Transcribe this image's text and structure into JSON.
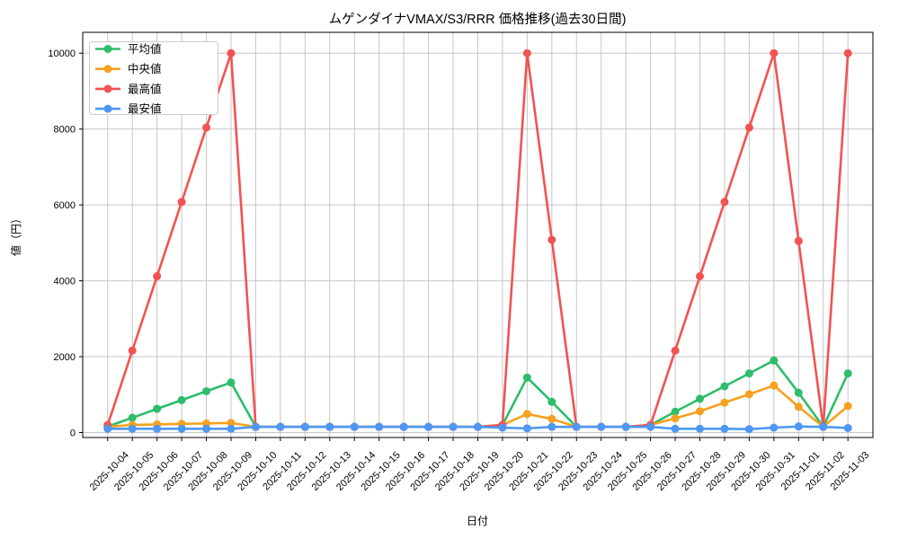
{
  "chart_data": {
    "type": "line",
    "title": "ムゲンダイナVMAX/S3/RRR 価格推移(過去30日間)",
    "xlabel": "日付",
    "ylabel": "値（円）",
    "x": [
      "2025-10-04",
      "2025-10-05",
      "2025-10-06",
      "2025-10-07",
      "2025-10-08",
      "2025-10-09",
      "2025-10-10",
      "2025-10-11",
      "2025-10-12",
      "2025-10-13",
      "2025-10-14",
      "2025-10-15",
      "2025-10-16",
      "2025-10-17",
      "2025-10-18",
      "2025-10-19",
      "2025-10-20",
      "2025-10-21",
      "2025-10-22",
      "2025-10-23",
      "2025-10-24",
      "2025-10-25",
      "2025-10-26",
      "2025-10-27",
      "2025-10-28",
      "2025-10-29",
      "2025-10-30",
      "2025-10-31",
      "2025-11-01",
      "2025-11-02",
      "2025-11-03"
    ],
    "series": [
      {
        "name": "平均値",
        "color": "#2ebd6b",
        "values": [
          160,
          390,
          625,
          855,
          1090,
          1320,
          150,
          150,
          150,
          150,
          150,
          150,
          150,
          150,
          150,
          150,
          200,
          1450,
          810,
          150,
          150,
          150,
          200,
          550,
          890,
          1220,
          1560,
          1900,
          1050,
          150,
          1560
        ]
      },
      {
        "name": "中央値",
        "color": "#f6a11f",
        "values": [
          155,
          200,
          215,
          230,
          240,
          255,
          150,
          150,
          150,
          150,
          150,
          150,
          150,
          150,
          150,
          150,
          200,
          490,
          360,
          150,
          150,
          150,
          200,
          375,
          560,
          790,
          1010,
          1240,
          680,
          150,
          700
        ]
      },
      {
        "name": "最高値",
        "color": "#f25252",
        "values": [
          200,
          2160,
          4120,
          6080,
          8040,
          10000,
          150,
          150,
          150,
          150,
          150,
          150,
          150,
          150,
          150,
          150,
          200,
          10000,
          5080,
          150,
          150,
          150,
          200,
          2160,
          4120,
          6080,
          8040,
          10000,
          5050,
          150,
          10000
        ]
      },
      {
        "name": "最安値",
        "color": "#4e97f3",
        "values": [
          100,
          100,
          100,
          100,
          100,
          100,
          150,
          150,
          150,
          150,
          150,
          150,
          150,
          150,
          150,
          150,
          130,
          110,
          150,
          150,
          150,
          150,
          150,
          100,
          100,
          100,
          90,
          130,
          160,
          150,
          120
        ]
      }
    ],
    "yticks": [
      0,
      2000,
      4000,
      6000,
      8000,
      10000
    ],
    "ylim": [
      0,
      10000
    ],
    "grid": true,
    "legend_position": "upper left"
  }
}
